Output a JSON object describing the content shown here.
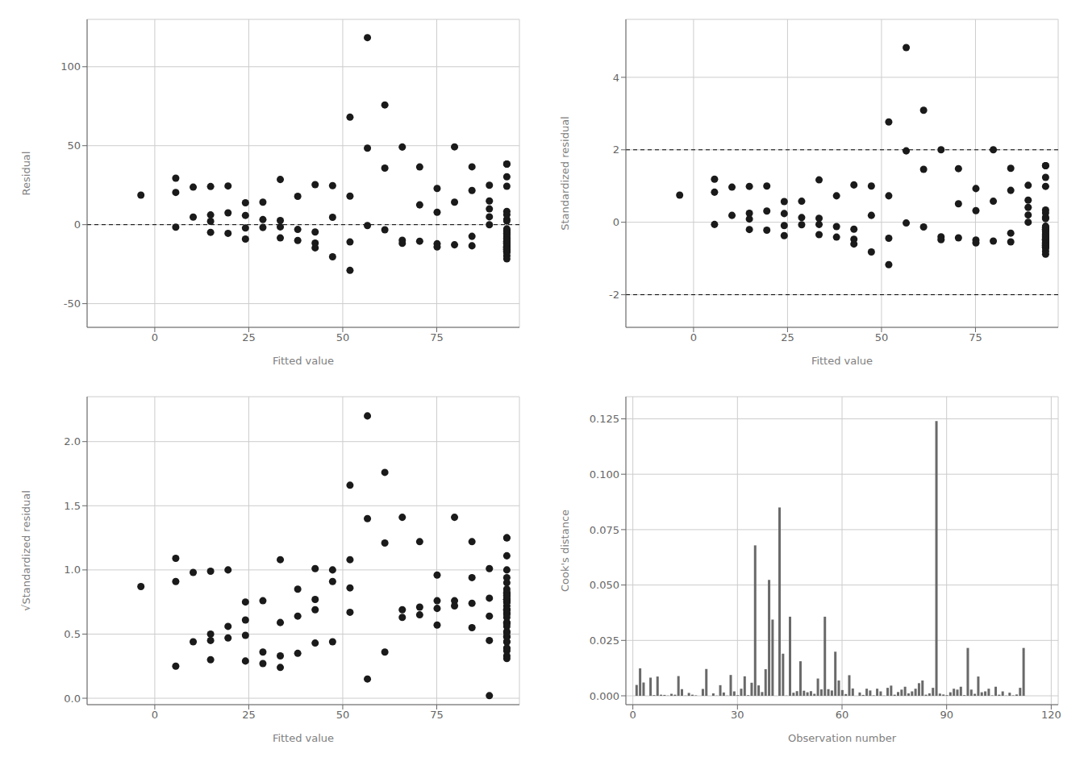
{
  "chart_data": [
    {
      "type": "scatter",
      "xlabel": "Fitted value",
      "ylabel": "Residual",
      "xlim": [
        -18,
        97
      ],
      "ylim": [
        -65,
        130
      ],
      "xticks": [
        0,
        25,
        50,
        75
      ],
      "yticks": [
        -50,
        0,
        50,
        100
      ],
      "grid": true,
      "color": "#1a1a1a",
      "hlines": [
        0
      ],
      "x": [
        -3.69,
        5.58,
        5.58,
        5.58,
        10.22,
        10.22,
        14.85,
        14.85,
        14.85,
        14.85,
        19.49,
        19.49,
        19.49,
        24.12,
        24.12,
        24.12,
        24.12,
        28.76,
        28.76,
        28.76,
        33.39,
        33.39,
        33.39,
        33.39,
        38.03,
        38.03,
        38.03,
        42.66,
        42.66,
        42.66,
        42.66,
        47.3,
        47.3,
        47.3,
        51.93,
        51.93,
        51.93,
        51.93,
        56.57,
        56.57,
        56.57,
        61.2,
        61.2,
        61.2,
        65.84,
        65.84,
        65.84,
        70.47,
        70.47,
        70.47,
        75.11,
        75.11,
        75.11,
        75.11,
        79.74,
        79.74,
        79.74,
        84.38,
        84.38,
        84.38,
        84.38,
        89.01,
        89.01,
        89.01,
        89.01,
        89.01,
        93.65,
        93.65,
        93.65,
        93.65,
        93.65,
        93.65,
        93.65,
        93.65,
        93.65,
        93.65,
        93.65,
        93.65,
        93.65,
        93.65,
        93.65,
        93.65,
        93.65,
        93.65,
        93.65,
        93.65,
        93.65,
        93.65,
        93.65,
        93.65,
        93.65,
        93.65,
        93.65,
        93.65,
        93.65,
        93.65,
        93.65,
        93.65,
        93.65,
        93.65,
        93.65,
        93.65,
        93.65,
        93.65,
        93.65,
        93.65,
        93.65,
        93.65,
        93.65,
        93.65,
        93.65,
        93.65
      ],
      "values": [
        18.69,
        29.42,
        20.42,
        -1.58,
        23.78,
        4.78,
        24.15,
        6.15,
        -4.85,
        2.15,
        7.51,
        -5.49,
        24.51,
        13.88,
        -2.12,
        -9.12,
        5.88,
        3.24,
        -1.76,
        14.24,
        28.61,
        -1.39,
        -8.39,
        2.61,
        17.97,
        -10.03,
        -3.03,
        25.34,
        -11.66,
        -4.66,
        -14.66,
        24.7,
        4.7,
        -20.3,
        68.07,
        18.07,
        -10.93,
        -28.93,
        118.43,
        48.43,
        -0.57,
        75.8,
        35.8,
        -3.2,
        49.16,
        -9.84,
        -11.84,
        36.53,
        12.53,
        -10.47,
        -12.1,
        7.9,
        22.9,
        -14.1,
        49.26,
        14.26,
        -12.74,
        36.62,
        21.62,
        -13.38,
        -7.38,
        24.99,
        14.99,
        -0.01,
        9.99,
        4.99,
        -14.65,
        -12.65,
        -3.65,
        -14.65,
        -11.65,
        -2.65,
        -15.65,
        -17.65,
        -5.65,
        -10.65,
        -13.65,
        -16.65,
        -8.65,
        -11.65,
        -14.65,
        -19.65,
        -21.65,
        -5.65,
        -8.65,
        -15.65,
        30.35,
        8.35,
        -6.65,
        -4.65,
        -10.65,
        -14.65,
        -13.65,
        -16.65,
        -4.65,
        38.35,
        -13.65,
        -7.65,
        24.35,
        -10.65,
        -11.65,
        -14.65,
        3.35,
        -16.65,
        -5.65,
        -11.65,
        2.35,
        -9.65,
        -3.65,
        6.35,
        -15.65,
        38.35
      ]
    },
    {
      "type": "scatter",
      "xlabel": "Fitted value",
      "ylabel": "Standardized residual",
      "xlim": [
        -18,
        97
      ],
      "ylim": [
        -2.9,
        5.6
      ],
      "xticks": [
        0,
        25,
        50,
        75
      ],
      "yticks": [
        -2,
        0,
        2,
        4
      ],
      "grid": true,
      "color": "#1a1a1a",
      "hlines": [
        2.0,
        -2.0
      ],
      "x": [
        -3.69,
        5.58,
        5.58,
        5.58,
        10.22,
        10.22,
        14.85,
        14.85,
        14.85,
        14.85,
        19.49,
        19.49,
        19.49,
        24.12,
        24.12,
        24.12,
        24.12,
        28.76,
        28.76,
        28.76,
        33.39,
        33.39,
        33.39,
        33.39,
        38.03,
        38.03,
        38.03,
        42.66,
        42.66,
        42.66,
        42.66,
        47.3,
        47.3,
        47.3,
        51.93,
        51.93,
        51.93,
        51.93,
        56.57,
        56.57,
        56.57,
        61.2,
        61.2,
        61.2,
        65.84,
        65.84,
        65.84,
        70.47,
        70.47,
        70.47,
        75.11,
        75.11,
        75.11,
        75.11,
        79.74,
        79.74,
        79.74,
        84.38,
        84.38,
        84.38,
        84.38,
        89.01,
        89.01,
        89.01,
        89.01,
        89.01,
        93.65,
        93.65,
        93.65,
        93.65,
        93.65,
        93.65,
        93.65,
        93.65,
        93.65,
        93.65,
        93.65,
        93.65,
        93.65,
        93.65,
        93.65,
        93.65,
        93.65,
        93.65,
        93.65,
        93.65,
        93.65,
        93.65,
        93.65,
        93.65,
        93.65,
        93.65,
        93.65,
        93.65,
        93.65,
        93.65,
        93.65,
        93.65,
        93.65,
        93.65,
        93.65,
        93.65,
        93.65,
        93.65,
        93.65,
        93.65,
        93.65,
        93.65,
        93.65,
        93.65,
        93.65,
        93.65
      ],
      "values": [
        0.75,
        1.19,
        0.83,
        -0.06,
        0.97,
        0.19,
        0.99,
        0.25,
        -0.2,
        0.09,
        0.31,
        -0.22,
        1.0,
        0.57,
        -0.09,
        -0.37,
        0.24,
        0.13,
        -0.07,
        0.58,
        1.17,
        -0.06,
        -0.34,
        0.11,
        0.73,
        -0.41,
        -0.12,
        1.03,
        -0.47,
        -0.19,
        -0.6,
        1.0,
        0.19,
        -0.82,
        2.77,
        0.73,
        -0.44,
        -1.17,
        4.82,
        1.97,
        -0.02,
        3.09,
        1.46,
        -0.13,
        2.0,
        -0.4,
        -0.48,
        1.48,
        0.51,
        -0.43,
        -0.49,
        0.32,
        0.93,
        -0.57,
        2.0,
        0.58,
        -0.52,
        1.49,
        0.88,
        -0.54,
        -0.3,
        1.02,
        0.61,
        0.0,
        0.41,
        0.2,
        -0.6,
        -0.52,
        -0.15,
        -0.6,
        -0.48,
        -0.11,
        -0.64,
        -0.72,
        -0.23,
        -0.44,
        -0.56,
        -0.68,
        -0.35,
        -0.48,
        -0.6,
        -0.8,
        -0.88,
        -0.23,
        -0.35,
        -0.64,
        1.24,
        0.34,
        -0.27,
        -0.19,
        -0.43,
        -0.6,
        -0.56,
        -0.68,
        -0.19,
        1.56,
        -0.56,
        -0.31,
        0.99,
        -0.43,
        -0.48,
        -0.6,
        0.14,
        -0.68,
        -0.23,
        -0.48,
        0.1,
        -0.39,
        -0.15,
        0.26,
        -0.64,
        1.56
      ]
    },
    {
      "type": "scatter",
      "xlabel": "Fitted value",
      "ylabel": "√Standardized residual",
      "xlim": [
        -18,
        97
      ],
      "ylim": [
        -0.05,
        2.35
      ],
      "xticks": [
        0,
        25,
        50,
        75
      ],
      "yticks": [
        {
          "value": 0.0,
          "label": "0.0"
        },
        0.5,
        {
          "value": 1.0,
          "label": "1.0"
        },
        1.5,
        {
          "value": 2.0,
          "label": "2.0"
        }
      ],
      "grid": true,
      "color": "#1a1a1a",
      "x": [
        -3.69,
        5.58,
        5.58,
        5.58,
        10.22,
        10.22,
        14.85,
        14.85,
        14.85,
        14.85,
        19.49,
        19.49,
        19.49,
        24.12,
        24.12,
        24.12,
        24.12,
        28.76,
        28.76,
        28.76,
        33.39,
        33.39,
        33.39,
        33.39,
        38.03,
        38.03,
        38.03,
        42.66,
        42.66,
        42.66,
        42.66,
        47.3,
        47.3,
        47.3,
        51.93,
        51.93,
        51.93,
        51.93,
        56.57,
        56.57,
        56.57,
        61.2,
        61.2,
        61.2,
        65.84,
        65.84,
        65.84,
        70.47,
        70.47,
        70.47,
        75.11,
        75.11,
        75.11,
        75.11,
        79.74,
        79.74,
        79.74,
        84.38,
        84.38,
        84.38,
        84.38,
        89.01,
        89.01,
        89.01,
        89.01,
        89.01,
        93.65,
        93.65,
        93.65,
        93.65,
        93.65,
        93.65,
        93.65,
        93.65,
        93.65,
        93.65,
        93.65,
        93.65,
        93.65,
        93.65,
        93.65,
        93.65,
        93.65,
        93.65,
        93.65,
        93.65,
        93.65,
        93.65,
        93.65,
        93.65,
        93.65,
        93.65,
        93.65,
        93.65,
        93.65,
        93.65,
        93.65,
        93.65,
        93.65,
        93.65,
        93.65,
        93.65,
        93.65,
        93.65,
        93.65,
        93.65,
        93.65,
        93.65,
        93.65,
        93.65,
        93.65,
        93.65
      ],
      "values": [
        0.87,
        1.09,
        0.91,
        0.25,
        0.98,
        0.44,
        0.99,
        0.5,
        0.45,
        0.3,
        0.56,
        0.47,
        1.0,
        0.75,
        0.29,
        0.61,
        0.49,
        0.36,
        0.27,
        0.76,
        1.08,
        0.24,
        0.59,
        0.33,
        0.85,
        0.64,
        0.35,
        1.01,
        0.69,
        0.43,
        0.77,
        1.0,
        0.44,
        0.91,
        1.66,
        0.86,
        0.67,
        1.08,
        2.2,
        1.4,
        0.15,
        1.76,
        1.21,
        0.36,
        1.41,
        0.63,
        0.69,
        1.22,
        0.71,
        0.65,
        0.7,
        0.57,
        0.96,
        0.76,
        1.41,
        0.76,
        0.72,
        1.22,
        0.94,
        0.74,
        0.55,
        1.01,
        0.78,
        0.02,
        0.64,
        0.45,
        0.77,
        0.72,
        0.39,
        0.77,
        0.69,
        0.33,
        0.8,
        0.85,
        0.48,
        0.66,
        0.75,
        0.82,
        0.59,
        0.69,
        0.77,
        0.9,
        0.94,
        0.48,
        0.59,
        0.8,
        1.11,
        0.58,
        0.52,
        0.44,
        0.66,
        0.77,
        0.75,
        0.82,
        0.44,
        1.25,
        0.75,
        0.56,
        1.0,
        0.66,
        0.69,
        0.77,
        0.37,
        0.82,
        0.48,
        0.69,
        0.31,
        0.63,
        0.39,
        0.51,
        0.8,
        1.25
      ]
    },
    {
      "type": "bar",
      "xlabel": "Observation number",
      "ylabel": "Cook's distance",
      "xlim": [
        -2,
        122
      ],
      "ylim": [
        -0.004,
        0.135
      ],
      "xticks": [
        0,
        30,
        60,
        90,
        120
      ],
      "yticks": [
        {
          "value": 0.0,
          "label": "0.000"
        },
        0.025,
        {
          "value": 0.05,
          "label": "0.050"
        },
        0.075,
        {
          "value": 0.1,
          "label": "0.100"
        },
        0.125
      ],
      "grid": true,
      "color": "#696969",
      "x": [
        1,
        2,
        3,
        4,
        5,
        6,
        7,
        8,
        9,
        10,
        11,
        12,
        13,
        14,
        15,
        16,
        17,
        18,
        19,
        20,
        21,
        22,
        23,
        24,
        25,
        26,
        27,
        28,
        29,
        30,
        31,
        32,
        33,
        34,
        35,
        36,
        37,
        38,
        39,
        40,
        41,
        42,
        43,
        44,
        45,
        46,
        47,
        48,
        49,
        50,
        51,
        52,
        53,
        54,
        55,
        56,
        57,
        58,
        59,
        60,
        61,
        62,
        63,
        64,
        65,
        66,
        67,
        68,
        69,
        70,
        71,
        72,
        73,
        74,
        75,
        76,
        77,
        78,
        79,
        80,
        81,
        82,
        83,
        84,
        85,
        86,
        87,
        88,
        89,
        90,
        91,
        92,
        93,
        94,
        95,
        96,
        97,
        98,
        99,
        100,
        101,
        102,
        103,
        104,
        105,
        106,
        107,
        108,
        109,
        110,
        111,
        112
      ],
      "values": [
        0.0049,
        0.0124,
        0.006,
        0.0,
        0.0082,
        0.0003,
        0.0087,
        0.0005,
        0.0004,
        0.0001,
        0.0009,
        0.0005,
        0.0089,
        0.003,
        0.0001,
        0.0013,
        0.0005,
        0.0002,
        0.0,
        0.0031,
        0.0121,
        0.0,
        0.0011,
        0.0001,
        0.0048,
        0.0015,
        0.0001,
        0.0094,
        0.002,
        0.0003,
        0.0032,
        0.0088,
        0.0003,
        0.0059,
        0.0679,
        0.0047,
        0.0017,
        0.012,
        0.0523,
        0.0344,
        0.0,
        0.085,
        0.019,
        0.0001,
        0.0357,
        0.0014,
        0.0021,
        0.0156,
        0.0023,
        0.0016,
        0.0021,
        0.0009,
        0.0078,
        0.0029,
        0.0357,
        0.003,
        0.0024,
        0.0199,
        0.0069,
        0.0026,
        0.0008,
        0.0093,
        0.0033,
        0.0,
        0.0015,
        0.0004,
        0.0032,
        0.0024,
        0.0002,
        0.0032,
        0.002,
        0.0001,
        0.0036,
        0.0046,
        0.0005,
        0.0017,
        0.0028,
        0.0041,
        0.0011,
        0.002,
        0.0032,
        0.0057,
        0.0069,
        0.0005,
        0.0011,
        0.0036,
        0.124,
        0.001,
        0.0006,
        0.0003,
        0.0016,
        0.0032,
        0.0028,
        0.0041,
        0.0003,
        0.0216,
        0.0028,
        0.0009,
        0.0087,
        0.0016,
        0.002,
        0.0032,
        0.0002,
        0.0041,
        0.0005,
        0.002,
        0.0001,
        0.0014,
        0.0002,
        0.0006,
        0.0036,
        0.0216
      ]
    }
  ]
}
